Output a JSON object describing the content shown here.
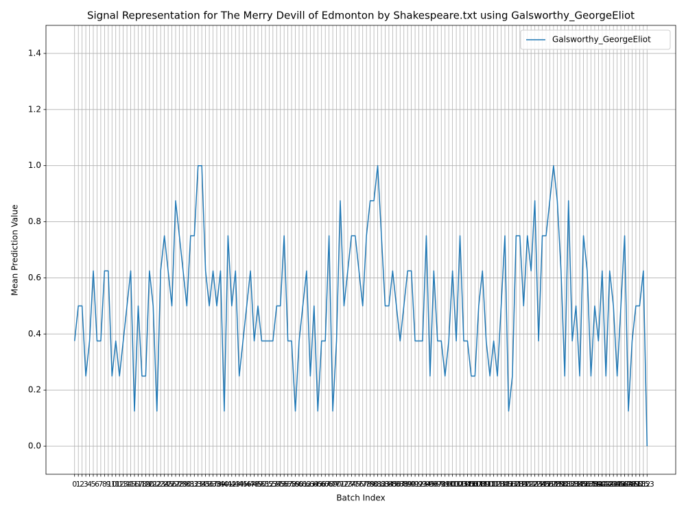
{
  "chart_data": {
    "type": "line",
    "title": "Signal Representation for The Merry Devill of Edmonton by Shakespeare.txt using Galsworthy_GeorgeEliot",
    "x_label": "Batch Index",
    "y_label": "Mean Prediction Value",
    "x": [
      0,
      1,
      2,
      3,
      4,
      5,
      6,
      7,
      8,
      9,
      10,
      11,
      12,
      13,
      14,
      15,
      16,
      17,
      18,
      19,
      20,
      21,
      22,
      23,
      24,
      25,
      26,
      27,
      28,
      29,
      30,
      31,
      32,
      33,
      34,
      35,
      36,
      37,
      38,
      39,
      40,
      41,
      42,
      43,
      44,
      45,
      46,
      47,
      48,
      49,
      50,
      51,
      52,
      53,
      54,
      55,
      56,
      57,
      58,
      59,
      60,
      61,
      62,
      63,
      64,
      65,
      66,
      67,
      68,
      69,
      70,
      71,
      72,
      73,
      74,
      75,
      76,
      77,
      78,
      79,
      80,
      81,
      82,
      83,
      84,
      85,
      86,
      87,
      88,
      89,
      90,
      91,
      92,
      93,
      94,
      95,
      96,
      97,
      98,
      99,
      100,
      101,
      102,
      103,
      104,
      105,
      106,
      107,
      108,
      109,
      110,
      111,
      112,
      113,
      114,
      115,
      116,
      117,
      118,
      119,
      120,
      121,
      122,
      123,
      124,
      125,
      126,
      127,
      128,
      129,
      130,
      131,
      132,
      133,
      134,
      135,
      136,
      137,
      138,
      139,
      140,
      141,
      142,
      143,
      144,
      145,
      146,
      147,
      148,
      149,
      150,
      151,
      152,
      153
    ],
    "series": [
      {
        "name": "Galsworthy_GeorgeEliot",
        "color": "#1f77b4",
        "values": [
          0.375,
          0.5,
          0.5,
          0.25,
          0.375,
          0.625,
          0.375,
          0.375,
          0.625,
          0.625,
          0.25,
          0.375,
          0.25,
          0.375,
          0.5,
          0.625,
          0.125,
          0.5,
          0.25,
          0.25,
          0.625,
          0.5,
          0.125,
          0.625,
          0.75,
          0.625,
          0.5,
          0.875,
          0.75,
          0.625,
          0.5,
          0.75,
          0.75,
          1,
          1,
          0.625,
          0.5,
          0.625,
          0.5,
          0.625,
          0.125,
          0.75,
          0.5,
          0.625,
          0.25,
          0.375,
          0.5,
          0.625,
          0.375,
          0.5,
          0.375,
          0.375,
          0.375,
          0.375,
          0.5,
          0.5,
          0.75,
          0.375,
          0.375,
          0.125,
          0.375,
          0.5,
          0.625,
          0.25,
          0.5,
          0.125,
          0.375,
          0.375,
          0.75,
          0.125,
          0.375,
          0.875,
          0.5,
          0.625,
          0.75,
          0.75,
          0.625,
          0.5,
          0.75,
          0.875,
          0.875,
          1,
          0.75,
          0.5,
          0.5,
          0.625,
          0.5,
          0.375,
          0.5,
          0.625,
          0.625,
          0.375,
          0.375,
          0.375,
          0.75,
          0.25,
          0.625,
          0.375,
          0.375,
          0.25,
          0.375,
          0.625,
          0.375,
          0.75,
          0.375,
          0.375,
          0.25,
          0.25,
          0.5,
          0.625,
          0.375,
          0.25,
          0.375,
          0.25,
          0.5,
          0.75,
          0.125,
          0.25,
          0.75,
          0.75,
          0.5,
          0.75,
          0.625,
          0.875,
          0.375,
          0.75,
          0.75,
          0.875,
          1,
          0.875,
          0.625,
          0.25,
          0.875,
          0.375,
          0.5,
          0.25,
          0.75,
          0.625,
          0.25,
          0.5,
          0.375,
          0.625,
          0.25,
          0.625,
          0.5,
          0.25,
          0.5,
          0.75,
          0.125,
          0.375,
          0.5,
          0.5,
          0.625,
          0
        ]
      }
    ],
    "xlim": [
      -7.65,
      160.65
    ],
    "ylim": [
      -0.1,
      1.5
    ],
    "xticks": [
      0,
      1,
      2,
      3,
      4,
      5,
      6,
      7,
      8,
      9,
      10,
      11,
      12,
      13,
      14,
      15,
      16,
      17,
      18,
      19,
      20,
      21,
      22,
      23,
      24,
      25,
      26,
      27,
      28,
      29,
      30,
      31,
      32,
      33,
      34,
      35,
      36,
      37,
      38,
      39,
      40,
      41,
      42,
      43,
      44,
      45,
      46,
      47,
      48,
      49,
      50,
      51,
      52,
      53,
      54,
      55,
      56,
      57,
      58,
      59,
      60,
      61,
      62,
      63,
      64,
      65,
      66,
      67,
      68,
      69,
      70,
      71,
      72,
      73,
      74,
      75,
      76,
      77,
      78,
      79,
      80,
      81,
      82,
      83,
      84,
      85,
      86,
      87,
      88,
      89,
      90,
      91,
      92,
      93,
      94,
      95,
      96,
      97,
      98,
      99,
      100,
      101,
      102,
      103,
      104,
      105,
      106,
      107,
      108,
      109,
      110,
      111,
      112,
      113,
      114,
      115,
      116,
      117,
      118,
      119,
      120,
      121,
      122,
      123,
      124,
      125,
      126,
      127,
      128,
      129,
      130,
      131,
      132,
      133,
      134,
      135,
      136,
      137,
      138,
      139,
      140,
      141,
      142,
      143,
      144,
      145,
      146,
      147,
      148,
      149,
      150,
      151,
      152,
      153
    ],
    "yticks": [
      {
        "value": 0,
        "label": "0.0"
      },
      {
        "value": 0.2,
        "label": "0.2"
      },
      {
        "value": 0.4,
        "label": "0.4"
      },
      {
        "value": 0.6,
        "label": "0.6"
      },
      {
        "value": 0.8,
        "label": "0.8"
      },
      {
        "value": 1,
        "label": "1.0"
      },
      {
        "value": 1.2,
        "label": "1.2"
      },
      {
        "value": 1.4,
        "label": "1.4"
      }
    ],
    "grid": true,
    "legend": "upper right"
  }
}
